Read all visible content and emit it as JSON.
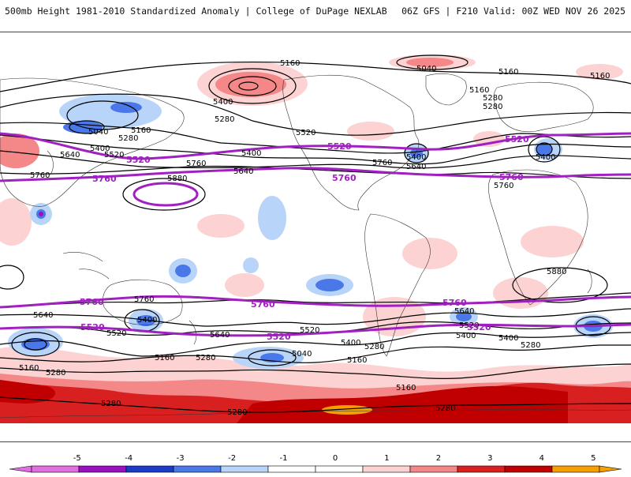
{
  "header": {
    "title": "500mb Height 1981-2010 Standardized Anomaly | College of DuPage NEXLAB",
    "run_info": "06Z GFS | F210 Valid: 00Z WED NOV 26 2025"
  },
  "colors": {
    "neg5": "#e070e0",
    "neg4": "#9a10c0",
    "neg3": "#1c3cc8",
    "neg2": "#4a78e8",
    "neg1": "#b8d4f8",
    "zero": "#ffffff",
    "pos1": "#fcd2d2",
    "pos2": "#f48888",
    "pos3": "#d82020",
    "pos4": "#c00000",
    "pos5": "#f5a000",
    "contour": "#000000",
    "purple_contour": "#a020c0"
  },
  "contours": {
    "black_labels": [
      "5160",
      "5040",
      "5160",
      "5160",
      "5280",
      "5280",
      "5400",
      "5040",
      "5160",
      "5280",
      "5400",
      "5520",
      "5640",
      "5280",
      "5520",
      "5400",
      "5400",
      "5760",
      "5640",
      "5760",
      "5880",
      "5400",
      "5640",
      "5760",
      "5760",
      "5640",
      "5520",
      "5760",
      "5640",
      "5400",
      "5400",
      "5520",
      "5400",
      "5280",
      "5280",
      "5160",
      "5160",
      "5040",
      "5280",
      "5160",
      "5640",
      "5520",
      "5400",
      "5280",
      "5160",
      "5280",
      "5280",
      "5280",
      "5880",
      "5160"
    ],
    "purple_labels": [
      "5520",
      "5520",
      "5520",
      "5760",
      "5760",
      "5760",
      "5760",
      "5760",
      "5760",
      "5520",
      "5520",
      "5520"
    ]
  },
  "colorbar": {
    "ticks": [
      "-5",
      "-4",
      "-3",
      "-2",
      "-1",
      "0",
      "1",
      "2",
      "3",
      "4",
      "5"
    ]
  }
}
